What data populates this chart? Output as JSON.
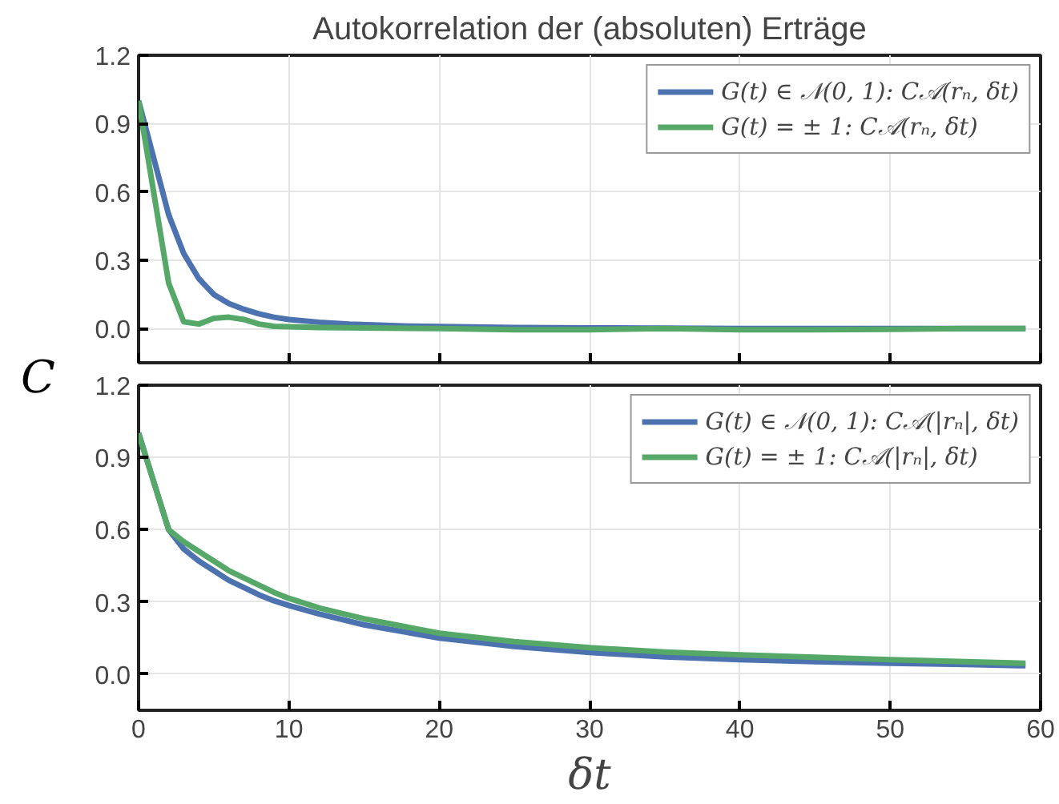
{
  "chart_data": [
    {
      "type": "line",
      "title": "Autokorrelation der (absoluten) Erträge",
      "ylabel": "C",
      "xlim": [
        0,
        60
      ],
      "xticks": [
        0,
        10,
        20,
        30,
        40,
        50,
        60
      ],
      "ylim": [
        -0.15,
        1.2
      ],
      "yticks": [
        {
          "value": 0,
          "label": "0.0"
        },
        0.3,
        0.6,
        0.9,
        1.2
      ],
      "grid": true,
      "legend": "top right",
      "tick_labels": "y",
      "series": [
        {
          "name": "G(t) ∈ 𝒩(0, 1): C𝒜(rₙ, δt)",
          "color": "#4c72b0",
          "x": [
            0,
            1,
            2,
            3,
            4,
            5,
            6,
            7,
            8,
            9,
            10,
            12,
            14,
            16,
            18,
            20,
            25,
            30,
            35,
            40,
            45,
            50,
            55,
            59
          ],
          "values": [
            1.0,
            0.75,
            0.5,
            0.33,
            0.22,
            0.15,
            0.11,
            0.085,
            0.065,
            0.05,
            0.04,
            0.028,
            0.02,
            0.015,
            0.011,
            0.009,
            0.005,
            0.003,
            0.002,
            0.0,
            0.0,
            0.0,
            0.0,
            0.0
          ]
        },
        {
          "name": "G(t) = ± 1: C𝒜(rₙ, δt)",
          "color": "#55a868",
          "x": [
            0,
            1,
            2,
            3,
            4,
            5,
            6,
            7,
            8,
            9,
            10,
            12,
            15,
            20,
            25,
            30,
            35,
            40,
            45,
            50,
            55,
            59
          ],
          "values": [
            1.0,
            0.6,
            0.2,
            0.03,
            0.02,
            0.045,
            0.05,
            0.04,
            0.02,
            0.01,
            0.008,
            0.005,
            0.003,
            0.0,
            -0.005,
            -0.005,
            0.0,
            -0.005,
            -0.005,
            -0.003,
            0.0,
            0.0
          ]
        }
      ]
    },
    {
      "type": "line",
      "xlabel": "δt",
      "xlim": [
        0,
        60
      ],
      "xticks": [
        0,
        10,
        20,
        30,
        40,
        50,
        60
      ],
      "ylim": [
        -0.15,
        1.2
      ],
      "yticks": [
        {
          "value": 0,
          "label": "0.0"
        },
        0.3,
        0.6,
        0.9,
        1.2
      ],
      "grid": true,
      "legend": "top right",
      "series": [
        {
          "name": "G(t) ∈ 𝒩(0, 1): C𝒜(|rₙ|, δt)",
          "color": "#4c72b0",
          "x": [
            0,
            1,
            2,
            3,
            4,
            5,
            6,
            7,
            8,
            9,
            10,
            12,
            15,
            20,
            25,
            30,
            35,
            40,
            45,
            50,
            55,
            59
          ],
          "values": [
            1.0,
            0.8,
            0.6,
            0.52,
            0.47,
            0.43,
            0.39,
            0.36,
            0.33,
            0.305,
            0.285,
            0.25,
            0.205,
            0.15,
            0.115,
            0.09,
            0.072,
            0.06,
            0.052,
            0.045,
            0.04,
            0.035
          ]
        },
        {
          "name": "G(t) = ± 1: C𝒜(|rₙ|, δt)",
          "color": "#55a868",
          "x": [
            0,
            1,
            2,
            3,
            4,
            5,
            6,
            7,
            8,
            9,
            10,
            12,
            15,
            20,
            25,
            30,
            35,
            40,
            45,
            50,
            55,
            59
          ],
          "values": [
            1.0,
            0.8,
            0.6,
            0.55,
            0.51,
            0.47,
            0.43,
            0.4,
            0.37,
            0.34,
            0.315,
            0.275,
            0.23,
            0.17,
            0.135,
            0.11,
            0.092,
            0.08,
            0.07,
            0.06,
            0.052,
            0.045
          ]
        }
      ]
    }
  ]
}
